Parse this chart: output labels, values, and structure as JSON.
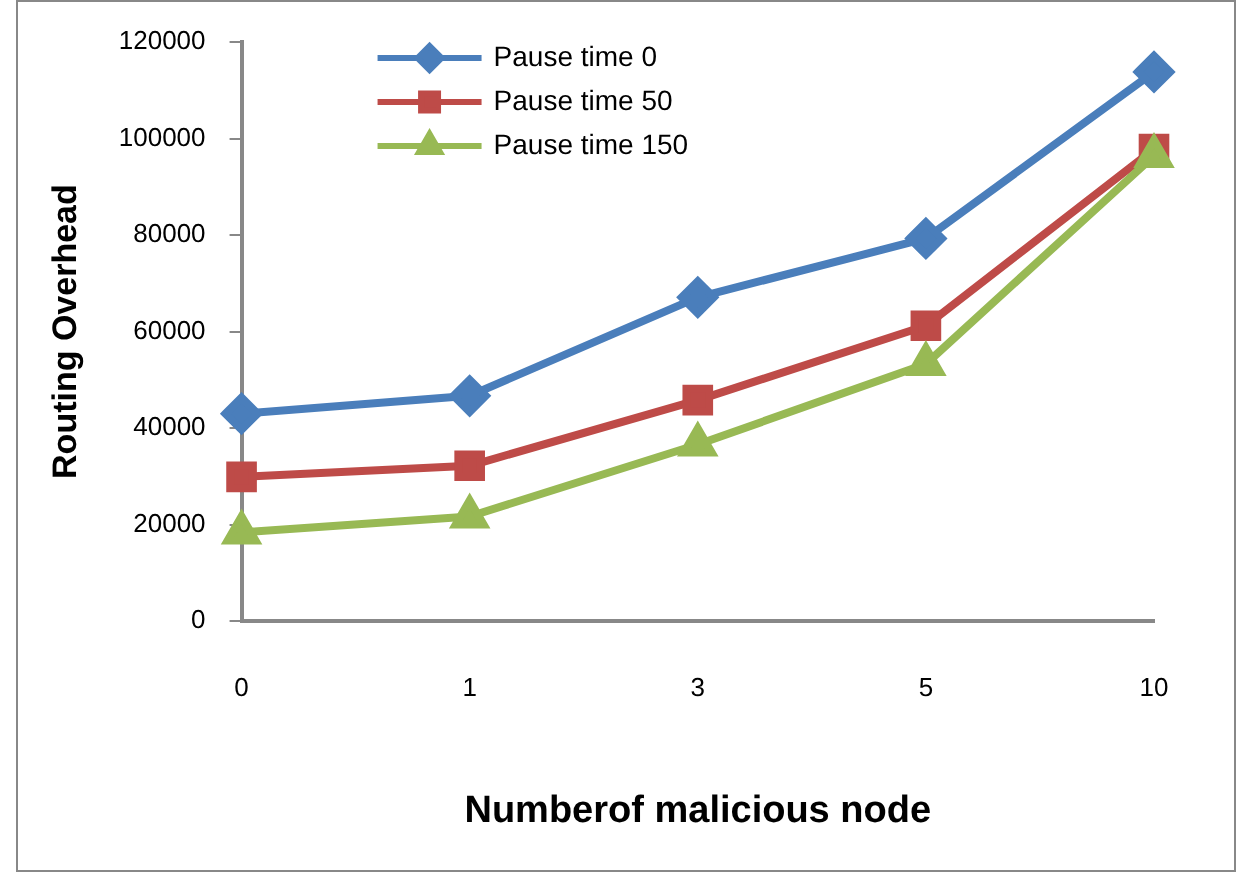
{
  "chart_data": {
    "type": "line",
    "xlabel": "Numberof malicious node",
    "ylabel": "Routing Overhead",
    "categories": [
      "0",
      "1",
      "3",
      "5",
      "10"
    ],
    "series": [
      {
        "name": "Pause time 0",
        "color": "#4a7ebb",
        "marker": "diamond",
        "values": [
          43000,
          46700,
          67100,
          79300,
          113800
        ]
      },
      {
        "name": "Pause time 50",
        "color": "#be4b48",
        "marker": "square",
        "values": [
          29900,
          32200,
          45800,
          61200,
          97800
        ]
      },
      {
        "name": "Pause time 150",
        "color": "#98b954",
        "marker": "triangle",
        "values": [
          18400,
          21700,
          36600,
          53300,
          96400
        ]
      }
    ],
    "ylim": [
      0,
      120000
    ],
    "yticks": [
      0,
      20000,
      40000,
      60000,
      80000,
      100000,
      120000
    ],
    "grid": false,
    "legend": "top"
  }
}
